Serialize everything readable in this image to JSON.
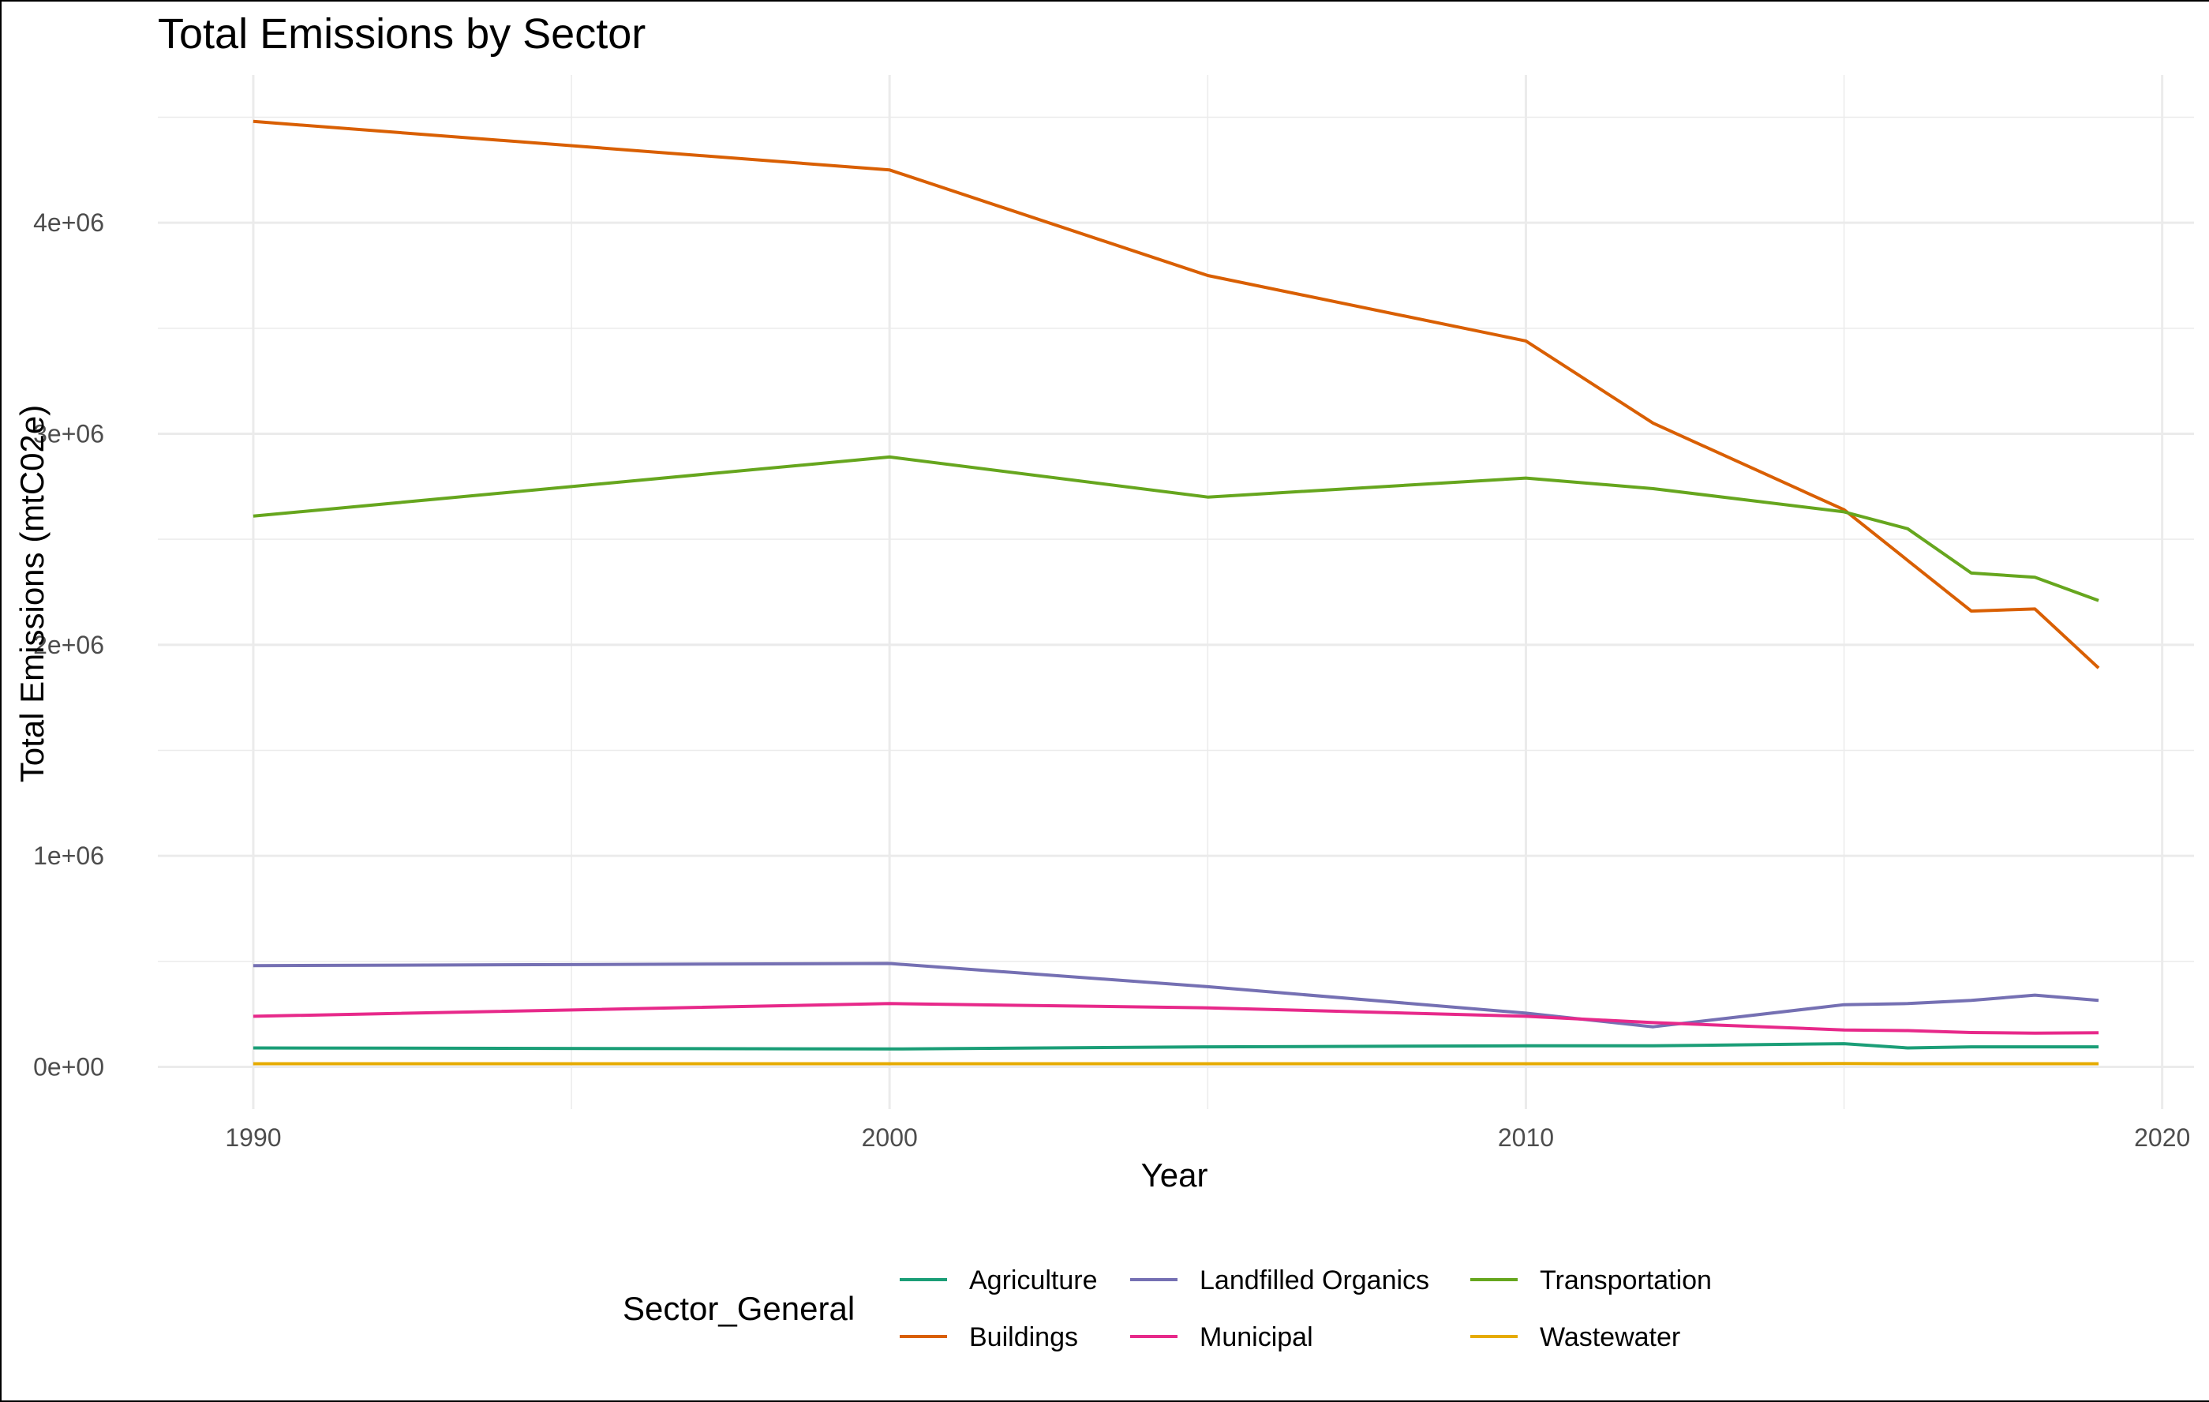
{
  "chart_data": {
    "type": "line",
    "title": "Total Emissions by Sector",
    "xlabel": "Year",
    "ylabel": "Total Emissions (mtC02e)",
    "xlim": [
      1988.5,
      2020.5
    ],
    "ylim": [
      -200000,
      4700000
    ],
    "x_ticks": [
      1990,
      2000,
      2010,
      2020
    ],
    "x_tick_labels": [
      "1990",
      "2000",
      "2010",
      "2020"
    ],
    "x_minor_ticks": [
      1995,
      2005,
      2015
    ],
    "y_ticks": [
      0,
      1000000,
      2000000,
      3000000,
      4000000
    ],
    "y_tick_labels": [
      "0e+00",
      "1e+06",
      "2e+06",
      "3e+06",
      "4e+06"
    ],
    "y_minor_ticks": [
      500000,
      1500000,
      2500000,
      3500000,
      4500000
    ],
    "grid": true,
    "legend": {
      "title": "Sector_General",
      "position": "bottom",
      "columns": 3
    },
    "series": [
      {
        "name": "Agriculture",
        "color": "#1b9e77",
        "x": [
          1990,
          2000,
          2005,
          2010,
          2012,
          2015,
          2016,
          2017,
          2018,
          2019
        ],
        "y": [
          90000,
          85000,
          95000,
          100000,
          100000,
          110000,
          90000,
          95000,
          95000,
          95000
        ]
      },
      {
        "name": "Buildings",
        "color": "#d95f02",
        "x": [
          1990,
          2000,
          2005,
          2010,
          2012,
          2015,
          2016,
          2017,
          2018,
          2019
        ],
        "y": [
          4480000,
          4250000,
          3750000,
          3440000,
          3050000,
          2640000,
          2400000,
          2160000,
          2170000,
          1890000
        ]
      },
      {
        "name": "Landfilled Organics",
        "color": "#7570b3",
        "x": [
          1990,
          2000,
          2005,
          2010,
          2012,
          2015,
          2016,
          2017,
          2018,
          2019
        ],
        "y": [
          480000,
          490000,
          380000,
          255000,
          190000,
          295000,
          300000,
          315000,
          340000,
          315000
        ]
      },
      {
        "name": "Municipal",
        "color": "#e7298a",
        "x": [
          1990,
          2000,
          2005,
          2010,
          2012,
          2015,
          2016,
          2017,
          2018,
          2019
        ],
        "y": [
          240000,
          300000,
          280000,
          240000,
          210000,
          175000,
          172000,
          163000,
          160000,
          162000
        ]
      },
      {
        "name": "Transportation",
        "color": "#66a61e",
        "x": [
          1990,
          2000,
          2005,
          2010,
          2012,
          2015,
          2016,
          2017,
          2018,
          2019
        ],
        "y": [
          2610000,
          2890000,
          2700000,
          2790000,
          2740000,
          2630000,
          2550000,
          2340000,
          2320000,
          2210000
        ]
      },
      {
        "name": "Wastewater",
        "color": "#e6ab02",
        "x": [
          1990,
          2000,
          2005,
          2010,
          2012,
          2015,
          2016,
          2017,
          2018,
          2019
        ],
        "y": [
          15000,
          15000,
          15000,
          15000,
          15000,
          16000,
          15000,
          15000,
          15000,
          15000
        ]
      }
    ]
  }
}
